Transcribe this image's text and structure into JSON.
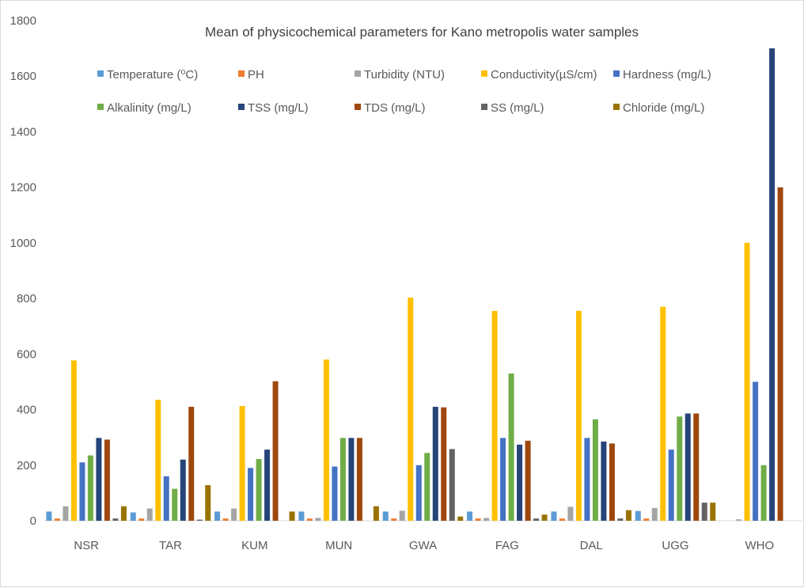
{
  "chart_data": {
    "type": "bar",
    "title": "Mean of physicochemical parameters for Kano metropolis water samples",
    "xlabel": "",
    "ylabel": "",
    "ylim": [
      0,
      1800
    ],
    "yticks": [
      0,
      200,
      400,
      600,
      800,
      1000,
      1200,
      1400,
      1600,
      1800
    ],
    "grid": false,
    "legend_position": "top",
    "categories": [
      "NSR",
      "TAR",
      "KUM",
      "MUN",
      "GWA",
      "FAG",
      "DAL",
      "UGG",
      "WHO"
    ],
    "series": [
      {
        "name": "Temperature (⁰C)",
        "color": "#5B9BD5",
        "values": [
          33,
          30,
          33,
          33,
          33,
          33,
          33,
          35,
          0
        ]
      },
      {
        "name": "PH",
        "color": "#ED7D31",
        "values": [
          8,
          8,
          8,
          8,
          8,
          8,
          8,
          8,
          0
        ]
      },
      {
        "name": "Turbidity (NTU)",
        "color": "#A5A5A5",
        "values": [
          52,
          44,
          44,
          10,
          36,
          10,
          50,
          46,
          5
        ]
      },
      {
        "name": "Conductivity(µS/cm)",
        "color": "#FFC000",
        "values": [
          577,
          435,
          413,
          580,
          803,
          755,
          755,
          770,
          1000
        ]
      },
      {
        "name": "Hardness (mg/L)",
        "color": "#4472C4",
        "values": [
          210,
          160,
          190,
          195,
          200,
          298,
          298,
          256,
          500
        ]
      },
      {
        "name": "Alkalinity (mg/L)",
        "color": "#70AD47",
        "values": [
          235,
          115,
          222,
          298,
          244,
          530,
          365,
          375,
          200
        ]
      },
      {
        "name": "TSS (mg/L)",
        "color": "#264478",
        "values": [
          298,
          220,
          256,
          298,
          410,
          274,
          285,
          386,
          1700
        ]
      },
      {
        "name": "TDS (mg/L)",
        "color": "#9E480E",
        "values": [
          292,
          410,
          502,
          298,
          408,
          288,
          278,
          386,
          1200
        ]
      },
      {
        "name": "SS (mg/L)",
        "color": "#636363",
        "values": [
          8,
          4,
          0,
          0,
          258,
          8,
          8,
          65,
          0
        ]
      },
      {
        "name": "Chloride (mg/L)",
        "color": "#997300",
        "values": [
          52,
          128,
          33,
          52,
          15,
          22,
          38,
          65,
          0
        ]
      }
    ]
  }
}
